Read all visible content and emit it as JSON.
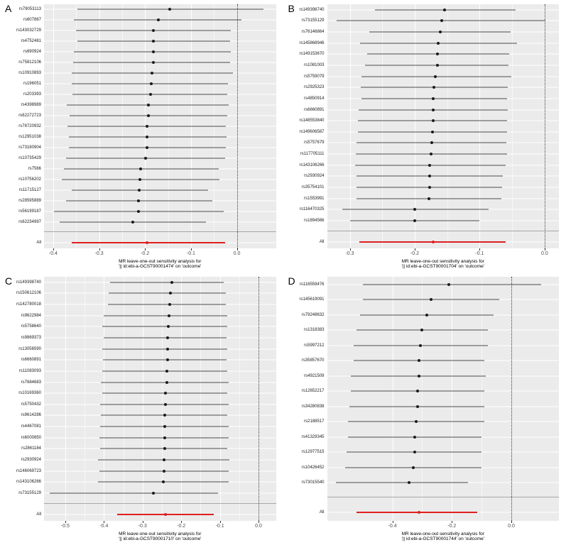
{
  "figure_title": "",
  "colors": {
    "panel_background": "#ebebeb",
    "grid_line": "#ffffff",
    "ci_line": "#4d4d4d",
    "point": "#1a1a1a",
    "all_red": "#e02020",
    "zero_line": "#2b2b2b",
    "separator": "#a8a8a8"
  },
  "chart_data": {
    "type": "forest",
    "description": "Four-panel MR leave-one-out sensitivity analysis forest plots; each row is a SNP left out, point = causal estimate with CI whiskers; red 'All' row at bottom; dotted vertical line at 0.",
    "panels": [
      {
        "letter": "A",
        "caption_line1": "MR leave-one-out sensitivity analysis for",
        "caption_line2": "'|| id:ebi-a-GCST90001474' on 'outcome'",
        "xlim": [
          -0.42,
          0.085
        ],
        "ticks": [
          -0.4,
          -0.3,
          -0.2,
          -0.1,
          0.0
        ],
        "zero": 0,
        "all": {
          "label": "All",
          "point": -0.195,
          "lo": -0.36,
          "hi": -0.025
        },
        "snps": [
          {
            "id": "rs79053113",
            "point": -0.146,
            "lo": -0.348,
            "hi": 0.058
          },
          {
            "id": "rs607867",
            "point": -0.171,
            "lo": -0.355,
            "hi": 0.01
          },
          {
            "id": "rs143032729",
            "point": -0.182,
            "lo": -0.351,
            "hi": -0.013
          },
          {
            "id": "rs4752481",
            "point": -0.182,
            "lo": -0.348,
            "hi": -0.015
          },
          {
            "id": "rs690924",
            "point": -0.182,
            "lo": -0.355,
            "hi": -0.013
          },
          {
            "id": "rs75812106",
            "point": -0.182,
            "lo": -0.356,
            "hi": -0.015
          },
          {
            "id": "rs10910893",
            "point": -0.185,
            "lo": -0.36,
            "hi": -0.008
          },
          {
            "id": "rs196051",
            "point": -0.186,
            "lo": -0.359,
            "hi": -0.02
          },
          {
            "id": "rs203393",
            "point": -0.188,
            "lo": -0.358,
            "hi": -0.021
          },
          {
            "id": "rs4398989",
            "point": -0.192,
            "lo": -0.371,
            "hi": -0.018
          },
          {
            "id": "rs62272723",
            "point": -0.193,
            "lo": -0.365,
            "hi": -0.021
          },
          {
            "id": "rs78720932",
            "point": -0.196,
            "lo": -0.369,
            "hi": -0.024
          },
          {
            "id": "rs12951038",
            "point": -0.196,
            "lo": -0.366,
            "hi": -0.023
          },
          {
            "id": "rs73180904",
            "point": -0.196,
            "lo": -0.366,
            "hi": -0.024
          },
          {
            "id": "rs10735429",
            "point": -0.199,
            "lo": -0.372,
            "hi": -0.025
          },
          {
            "id": "rs7566",
            "point": -0.209,
            "lo": -0.377,
            "hi": -0.04
          },
          {
            "id": "rs10756202",
            "point": -0.211,
            "lo": -0.382,
            "hi": -0.038
          },
          {
            "id": "rs11715127",
            "point": -0.213,
            "lo": -0.359,
            "hi": -0.063
          },
          {
            "id": "rs28595889",
            "point": -0.215,
            "lo": -0.372,
            "hi": -0.054
          },
          {
            "id": "rs56199187",
            "point": -0.215,
            "lo": -0.399,
            "hi": -0.028
          },
          {
            "id": "rs62234997",
            "point": -0.226,
            "lo": -0.386,
            "hi": -0.068
          }
        ]
      },
      {
        "letter": "B",
        "caption_line1": "MR leave-one-out sensitivity analysis for",
        "caption_line2": "'|| id:ebi-a-GCST90001704' on 'outcome'",
        "xlim": [
          -0.335,
          0.022
        ],
        "ticks": [
          -0.3,
          -0.2,
          -0.1,
          0.0
        ],
        "zero": 0,
        "all": {
          "label": "All",
          "point": -0.172,
          "lo": -0.285,
          "hi": -0.06
        },
        "snps": [
          {
            "id": "rs149398740",
            "point": -0.154,
            "lo": -0.261,
            "hi": -0.045
          },
          {
            "id": "rs73155129",
            "point": -0.158,
            "lo": -0.32,
            "hi": 0.001
          },
          {
            "id": "rs76146864",
            "point": -0.161,
            "lo": -0.27,
            "hi": -0.052
          },
          {
            "id": "rs145868946",
            "point": -0.164,
            "lo": -0.284,
            "hi": -0.043
          },
          {
            "id": "rs149153670",
            "point": -0.165,
            "lo": -0.273,
            "hi": -0.054
          },
          {
            "id": "rs1081003",
            "point": -0.165,
            "lo": -0.276,
            "hi": -0.056
          },
          {
            "id": "rs5759079",
            "point": -0.168,
            "lo": -0.282,
            "hi": -0.051
          },
          {
            "id": "rs2925323",
            "point": -0.17,
            "lo": -0.283,
            "hi": -0.057
          },
          {
            "id": "rs4850914",
            "point": -0.171,
            "lo": -0.282,
            "hi": -0.058
          },
          {
            "id": "rs6660891",
            "point": -0.171,
            "lo": -0.286,
            "hi": -0.057
          },
          {
            "id": "rs148553840",
            "point": -0.172,
            "lo": -0.287,
            "hi": -0.058
          },
          {
            "id": "rs149606587",
            "point": -0.173,
            "lo": -0.287,
            "hi": -0.058
          },
          {
            "id": "rs5757679",
            "point": -0.174,
            "lo": -0.29,
            "hi": -0.059
          },
          {
            "id": "rs117705111",
            "point": -0.175,
            "lo": -0.291,
            "hi": -0.058
          },
          {
            "id": "rs143106266",
            "point": -0.177,
            "lo": -0.292,
            "hi": -0.06
          },
          {
            "id": "rs2930924",
            "point": -0.177,
            "lo": -0.29,
            "hi": -0.064
          },
          {
            "id": "rs35754101",
            "point": -0.177,
            "lo": -0.29,
            "hi": -0.065
          },
          {
            "id": "rs1553991",
            "point": -0.178,
            "lo": -0.29,
            "hi": -0.067
          },
          {
            "id": "rs116470325",
            "point": -0.2,
            "lo": -0.312,
            "hi": -0.086
          },
          {
            "id": "rs1894566",
            "point": -0.2,
            "lo": -0.3,
            "hi": -0.1
          }
        ]
      },
      {
        "letter": "C",
        "caption_line1": "MR leave-one-out sensitivity analysis for",
        "caption_line2": "'|| id:ebi-a-GCST90001710' on 'outcome'",
        "xlim": [
          -0.555,
          0.045
        ],
        "ticks": [
          -0.5,
          -0.4,
          -0.3,
          -0.2,
          -0.1,
          0.0
        ],
        "zero": 0,
        "all": {
          "label": "All",
          "point": -0.24,
          "lo": -0.365,
          "hi": -0.115
        },
        "snps": [
          {
            "id": "rs149398740",
            "point": -0.225,
            "lo": -0.385,
            "hi": -0.09
          },
          {
            "id": "rs150612106",
            "point": -0.228,
            "lo": -0.388,
            "hi": -0.085
          },
          {
            "id": "rs142780018",
            "point": -0.23,
            "lo": -0.39,
            "hi": -0.085
          },
          {
            "id": "rs9622984",
            "point": -0.232,
            "lo": -0.4,
            "hi": -0.08
          },
          {
            "id": "rs5758640",
            "point": -0.233,
            "lo": -0.405,
            "hi": -0.08
          },
          {
            "id": "rs9869373",
            "point": -0.235,
            "lo": -0.4,
            "hi": -0.082
          },
          {
            "id": "rs13058590",
            "point": -0.236,
            "lo": -0.405,
            "hi": -0.08
          },
          {
            "id": "rs6660891",
            "point": -0.236,
            "lo": -0.402,
            "hi": -0.082
          },
          {
            "id": "rs11083093",
            "point": -0.238,
            "lo": -0.405,
            "hi": -0.08
          },
          {
            "id": "rs7684683",
            "point": -0.238,
            "lo": -0.408,
            "hi": -0.078
          },
          {
            "id": "rs10169360",
            "point": -0.24,
            "lo": -0.405,
            "hi": -0.08
          },
          {
            "id": "rs5750432",
            "point": -0.24,
            "lo": -0.41,
            "hi": -0.078
          },
          {
            "id": "rs9614286",
            "point": -0.242,
            "lo": -0.408,
            "hi": -0.08
          },
          {
            "id": "rs4467081",
            "point": -0.242,
            "lo": -0.41,
            "hi": -0.078
          },
          {
            "id": "rs6000850",
            "point": -0.243,
            "lo": -0.412,
            "hi": -0.078
          },
          {
            "id": "rs2861184",
            "point": -0.243,
            "lo": -0.41,
            "hi": -0.08
          },
          {
            "id": "rs2930924",
            "point": -0.244,
            "lo": -0.415,
            "hi": -0.075
          },
          {
            "id": "rs146069723",
            "point": -0.245,
            "lo": -0.412,
            "hi": -0.078
          },
          {
            "id": "rs143106266",
            "point": -0.246,
            "lo": -0.415,
            "hi": -0.078
          },
          {
            "id": "rs73155129",
            "point": -0.272,
            "lo": -0.54,
            "hi": -0.105
          }
        ]
      },
      {
        "letter": "D",
        "caption_line1": "MR leave-one-out sensitivity analysis for",
        "caption_line2": "'|| id:ebi-a-GCST90001744' on 'outcome'",
        "xlim": [
          -0.62,
          0.16
        ],
        "ticks": [
          -0.4,
          -0.2,
          0.0
        ],
        "zero": 0,
        "all": {
          "label": "All",
          "point": -0.31,
          "lo": -0.52,
          "hi": -0.115
        },
        "snps": [
          {
            "id": "rs116559476",
            "point": -0.21,
            "lo": -0.5,
            "hi": 0.1
          },
          {
            "id": "rs145619091",
            "point": -0.27,
            "lo": -0.5,
            "hi": -0.04
          },
          {
            "id": "rs79248632",
            "point": -0.285,
            "lo": -0.51,
            "hi": -0.06
          },
          {
            "id": "rs1318383",
            "point": -0.3,
            "lo": -0.52,
            "hi": -0.08
          },
          {
            "id": "rs5997212",
            "point": -0.305,
            "lo": -0.53,
            "hi": -0.08
          },
          {
            "id": "rs35857670",
            "point": -0.31,
            "lo": -0.53,
            "hi": -0.09
          },
          {
            "id": "rs4921509",
            "point": -0.31,
            "lo": -0.54,
            "hi": -0.085
          },
          {
            "id": "rs12652217",
            "point": -0.315,
            "lo": -0.54,
            "hi": -0.09
          },
          {
            "id": "rs34280838",
            "point": -0.315,
            "lo": -0.545,
            "hi": -0.09
          },
          {
            "id": "rs2188517",
            "point": -0.32,
            "lo": -0.55,
            "hi": -0.09
          },
          {
            "id": "rs41329345",
            "point": -0.325,
            "lo": -0.55,
            "hi": -0.1
          },
          {
            "id": "rs12977515",
            "point": -0.325,
            "lo": -0.555,
            "hi": -0.1
          },
          {
            "id": "rs10426452",
            "point": -0.33,
            "lo": -0.56,
            "hi": -0.1
          },
          {
            "id": "rs73015540",
            "point": -0.345,
            "lo": -0.59,
            "hi": -0.145
          }
        ]
      }
    ]
  }
}
